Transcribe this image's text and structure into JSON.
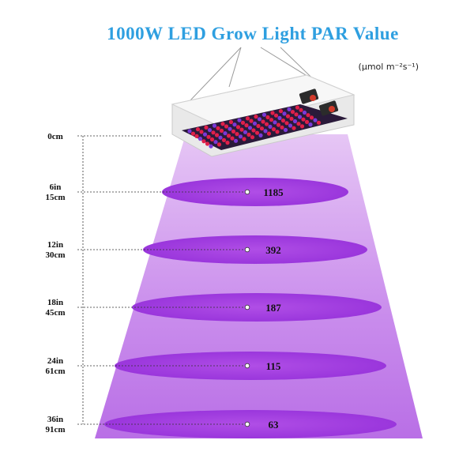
{
  "title": "1000W LED Grow Light PAR Value",
  "unit": "(μmol m⁻²s⁻¹)",
  "colors": {
    "title": "#2e9fe0",
    "cone": "#c07fe6",
    "ellipse": "#a83fe0",
    "panel": "#f2f2f2",
    "led_red": "#e0204a",
    "led_blue": "#7a3ad8"
  },
  "levels": [
    {
      "in": "",
      "cm": "0cm",
      "value": ""
    },
    {
      "in": "6in",
      "cm": "15cm",
      "value": "1185"
    },
    {
      "in": "12in",
      "cm": "30cm",
      "value": "392"
    },
    {
      "in": "18in",
      "cm": "45cm",
      "value": "187"
    },
    {
      "in": "24in",
      "cm": "61cm",
      "value": "115"
    },
    {
      "in": "36in",
      "cm": "91cm",
      "value": "63"
    }
  ]
}
